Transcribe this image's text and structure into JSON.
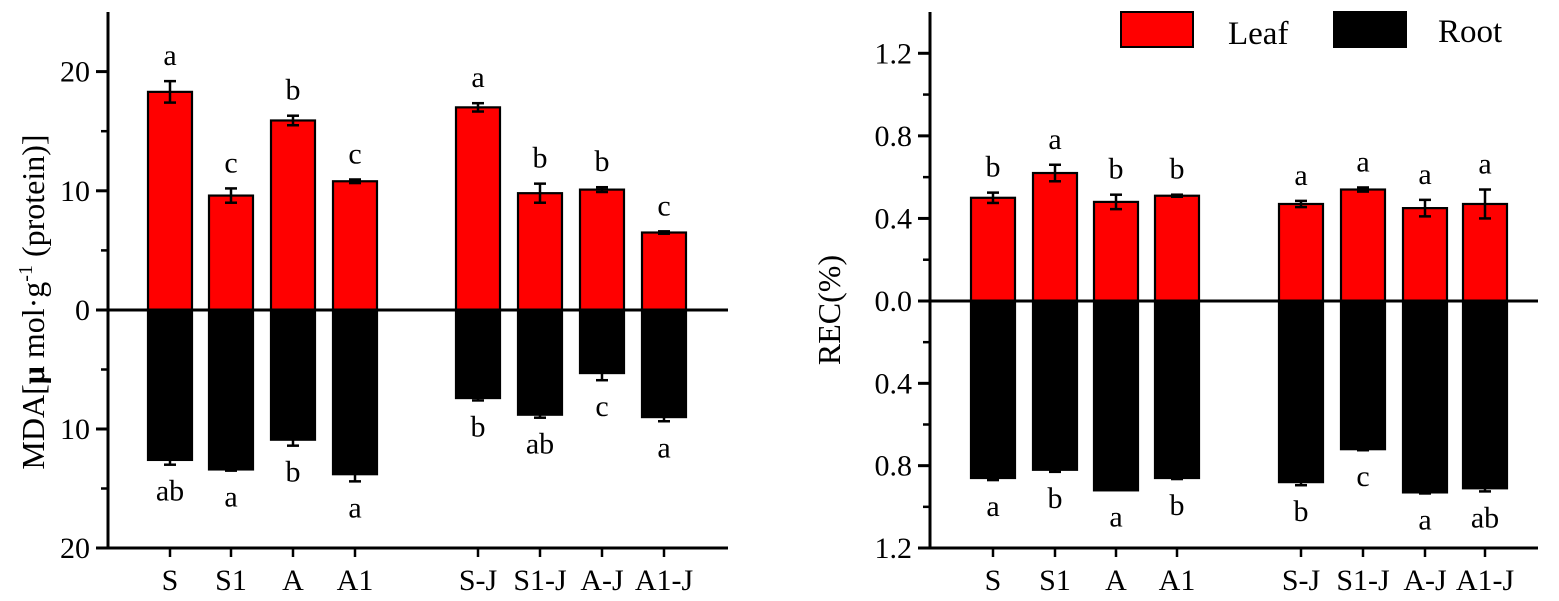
{
  "colors": {
    "leaf": "#ff0000",
    "root": "#000000",
    "axis": "#000000"
  },
  "legend": [
    {
      "name": "Leaf",
      "color": "#ff0000"
    },
    {
      "name": "Root",
      "color": "#000000"
    }
  ],
  "chart_data": [
    {
      "type": "bar",
      "ylabel_parts": [
        "MDA[",
        "μ",
        " mol·g",
        "-1",
        " (protein)]"
      ],
      "ylim_up": [
        0,
        25
      ],
      "ylim_down": [
        0,
        20
      ],
      "yticks": [
        {
          "value": 20,
          "label": "20"
        },
        {
          "value": 10,
          "label": "10"
        },
        {
          "value": 0,
          "label": "0"
        },
        {
          "value": -10,
          "label": "10"
        },
        {
          "value": -20,
          "label": "20"
        }
      ],
      "categories": [
        "S",
        "S1",
        "A",
        "A1",
        "S-J",
        "S1-J",
        "A-J",
        "A1-J"
      ],
      "series": [
        {
          "name": "Leaf",
          "values": [
            18.3,
            9.6,
            15.9,
            10.8,
            17.0,
            9.8,
            10.1,
            6.5
          ],
          "errors": [
            0.9,
            0.6,
            0.4,
            0.15,
            0.35,
            0.8,
            0.2,
            0.1
          ],
          "letters": [
            "a",
            "c",
            "b",
            "c",
            "a",
            "b",
            "b",
            "c"
          ]
        },
        {
          "name": "Root",
          "values": [
            12.6,
            13.4,
            10.9,
            13.8,
            7.4,
            8.8,
            5.3,
            9.0
          ],
          "errors": [
            0.4,
            0.1,
            0.5,
            0.6,
            0.2,
            0.25,
            0.6,
            0.35
          ],
          "letters": [
            "ab",
            "a",
            "b",
            "a",
            "b",
            "ab",
            "c",
            "a"
          ]
        }
      ]
    },
    {
      "type": "bar",
      "ylabel": "REC(%)",
      "ylim_up": [
        0,
        1.4
      ],
      "ylim_down": [
        0,
        1.2
      ],
      "yticks": [
        {
          "value": 1.2,
          "label": "1.2"
        },
        {
          "value": 0.8,
          "label": "0.8"
        },
        {
          "value": 0.4,
          "label": "0.4"
        },
        {
          "value": 0.0,
          "label": "0.0"
        },
        {
          "value": -0.4,
          "label": "0.4"
        },
        {
          "value": -0.8,
          "label": "0.8"
        },
        {
          "value": -1.2,
          "label": "1.2"
        }
      ],
      "categories": [
        "S",
        "S1",
        "A",
        "A1",
        "S-J",
        "S1-J",
        "A-J",
        "A1-J"
      ],
      "series": [
        {
          "name": "Leaf",
          "values": [
            0.5,
            0.62,
            0.48,
            0.51,
            0.47,
            0.54,
            0.45,
            0.47
          ],
          "errors": [
            0.025,
            0.04,
            0.035,
            0.005,
            0.015,
            0.01,
            0.04,
            0.07
          ],
          "letters": [
            "b",
            "a",
            "b",
            "b",
            "a",
            "a",
            "a",
            "a"
          ]
        },
        {
          "name": "Root",
          "values": [
            0.86,
            0.82,
            0.92,
            0.86,
            0.88,
            0.72,
            0.93,
            0.91
          ],
          "errors": [
            0.01,
            0.01,
            0.0,
            0.005,
            0.015,
            0.005,
            0.005,
            0.015
          ],
          "letters": [
            "a",
            "b",
            "a",
            "b",
            "b",
            "c",
            "a",
            "ab"
          ]
        }
      ]
    }
  ]
}
